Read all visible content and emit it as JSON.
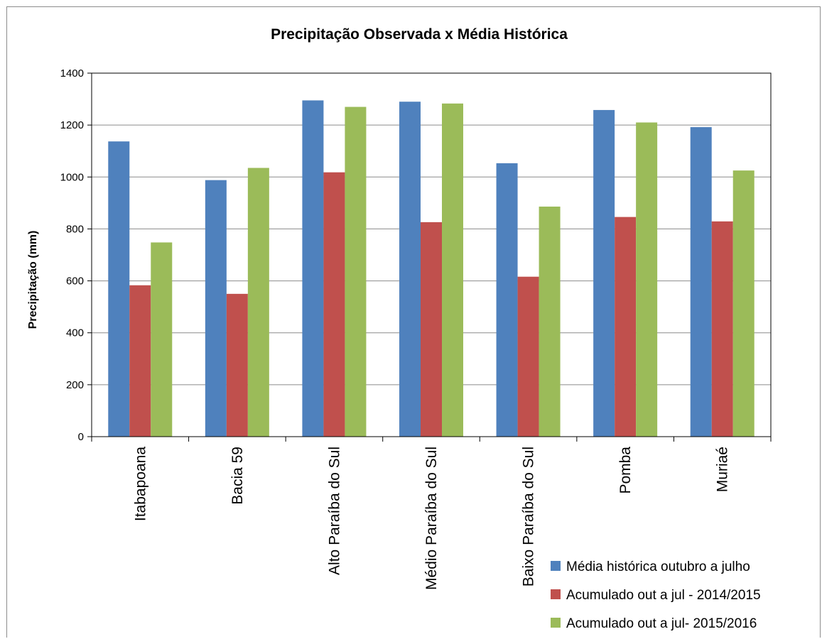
{
  "chart_data": {
    "type": "bar",
    "title": "Precipitação Observada x Média Histórica",
    "xlabel": "",
    "ylabel": "Precipitação (mm)",
    "ylim": [
      0,
      1400
    ],
    "yticks": [
      0,
      200,
      400,
      600,
      800,
      1000,
      1200,
      1400
    ],
    "grid": true,
    "legend_position": "bottom-right",
    "categories": [
      "Itabapoana",
      "Bacia 59",
      "Alto Paraíba do Sul",
      "Médio Paraíba do Sul",
      "Baixo Paraíba do Sul",
      "Pomba",
      "Muriaé"
    ],
    "series": [
      {
        "name": "Média histórica outubro a julho",
        "color": "#4F81BD",
        "values": [
          1137,
          988,
          1295,
          1290,
          1053,
          1258,
          1192
        ]
      },
      {
        "name": "Acumulado out a jul - 2014/2015",
        "color": "#C0504D",
        "values": [
          583,
          550,
          1018,
          826,
          616,
          846,
          829
        ]
      },
      {
        "name": "Acumulado out a jul- 2015/2016",
        "color": "#9BBB59",
        "values": [
          748,
          1035,
          1270,
          1283,
          886,
          1210,
          1025
        ]
      }
    ]
  }
}
